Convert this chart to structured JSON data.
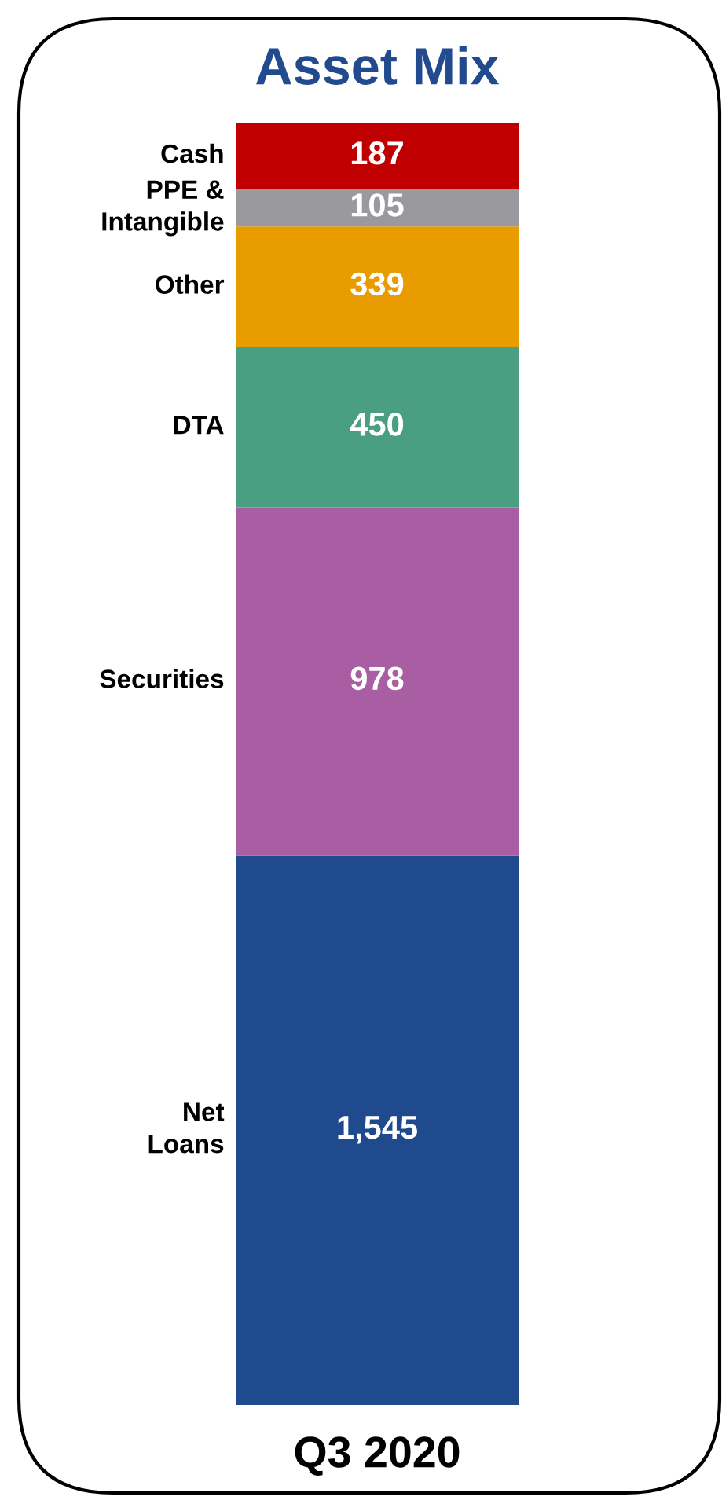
{
  "chart_data": {
    "type": "bar",
    "title": "Asset Mix",
    "categories": [
      "Q3 2020"
    ],
    "stacked": true,
    "data_labels": true,
    "legend": false,
    "grid": false,
    "series": [
      {
        "name": "Net\nLoans",
        "color": "#1f4a8e",
        "values": [
          1545
        ],
        "value_labels": [
          "1,545"
        ]
      },
      {
        "name": "Securities",
        "color": "#a95ea3",
        "values": [
          978
        ],
        "value_labels": [
          "978"
        ]
      },
      {
        "name": "DTA",
        "color": "#4a9e82",
        "values": [
          450
        ],
        "value_labels": [
          "450"
        ]
      },
      {
        "name": "Other",
        "color": "#e89c00",
        "values": [
          339
        ],
        "value_labels": [
          "339"
        ]
      },
      {
        "name": "PPE &\nIntangible",
        "color": "#9a9a9e",
        "values": [
          105
        ],
        "value_labels": [
          "105"
        ]
      },
      {
        "name": "Cash",
        "color": "#c00000",
        "values": [
          187
        ],
        "value_labels": [
          "187"
        ]
      }
    ]
  }
}
